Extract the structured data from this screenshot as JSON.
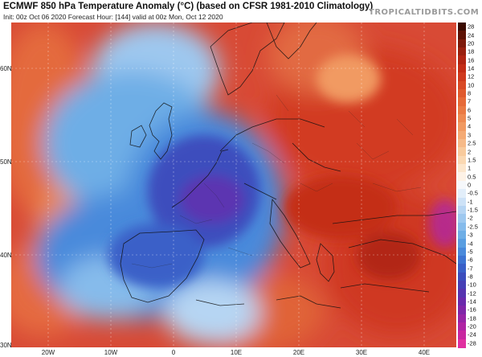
{
  "header": {
    "title": "ECMWF 850 hPa Temperature Anomaly (°C) (based on CFSR 1981-2010 Climatology)",
    "subtitle": "Init: 00z Oct 06 2020   Forecast Hour: [144]   valid at 00z Mon, Oct 12 2020",
    "brand": "TROPICALTIDBITS.COM"
  },
  "map": {
    "lat_labels": [
      "60N",
      "50N",
      "40N",
      "30N"
    ],
    "lon_labels": [
      "20W",
      "10W",
      "0",
      "10E",
      "20E",
      "30E",
      "40E"
    ]
  },
  "colorbar": {
    "labels": [
      "28",
      "24",
      "20",
      "18",
      "16",
      "14",
      "12",
      "10",
      "8",
      "7",
      "6",
      "5",
      "4",
      "3",
      "2.5",
      "2",
      "1.5",
      "1",
      "0.5",
      "0",
      "-0.5",
      "-1",
      "-1.5",
      "-2",
      "-2.5",
      "-3",
      "-4",
      "-5",
      "-6",
      "-7",
      "-8",
      "-10",
      "-12",
      "-14",
      "-16",
      "-18",
      "-20",
      "-24",
      "-28"
    ],
    "colors": [
      "#3a0a00",
      "#5e1204",
      "#7e1a0a",
      "#9a200e",
      "#b22512",
      "#c42d16",
      "#cf3a1e",
      "#d94a26",
      "#e05a2e",
      "#e66a38",
      "#ea7a44",
      "#ee8a52",
      "#f19a62",
      "#f4aa74",
      "#f6ba88",
      "#f8ca9c",
      "#fad8b2",
      "#fce6cc",
      "#fef2e6",
      "#f6f8fb",
      "#e2eefa",
      "#cde2f7",
      "#b6d5f3",
      "#9ec8ef",
      "#86bbeb",
      "#6eaee6",
      "#5a9ee1",
      "#4a8adb",
      "#3e74d2",
      "#3a60c8",
      "#3c4ebd",
      "#4640b6",
      "#5634b0",
      "#6a2aac",
      "#8026a8",
      "#9824a6",
      "#b024a4",
      "#c828a0",
      "#e030a0"
    ]
  }
}
